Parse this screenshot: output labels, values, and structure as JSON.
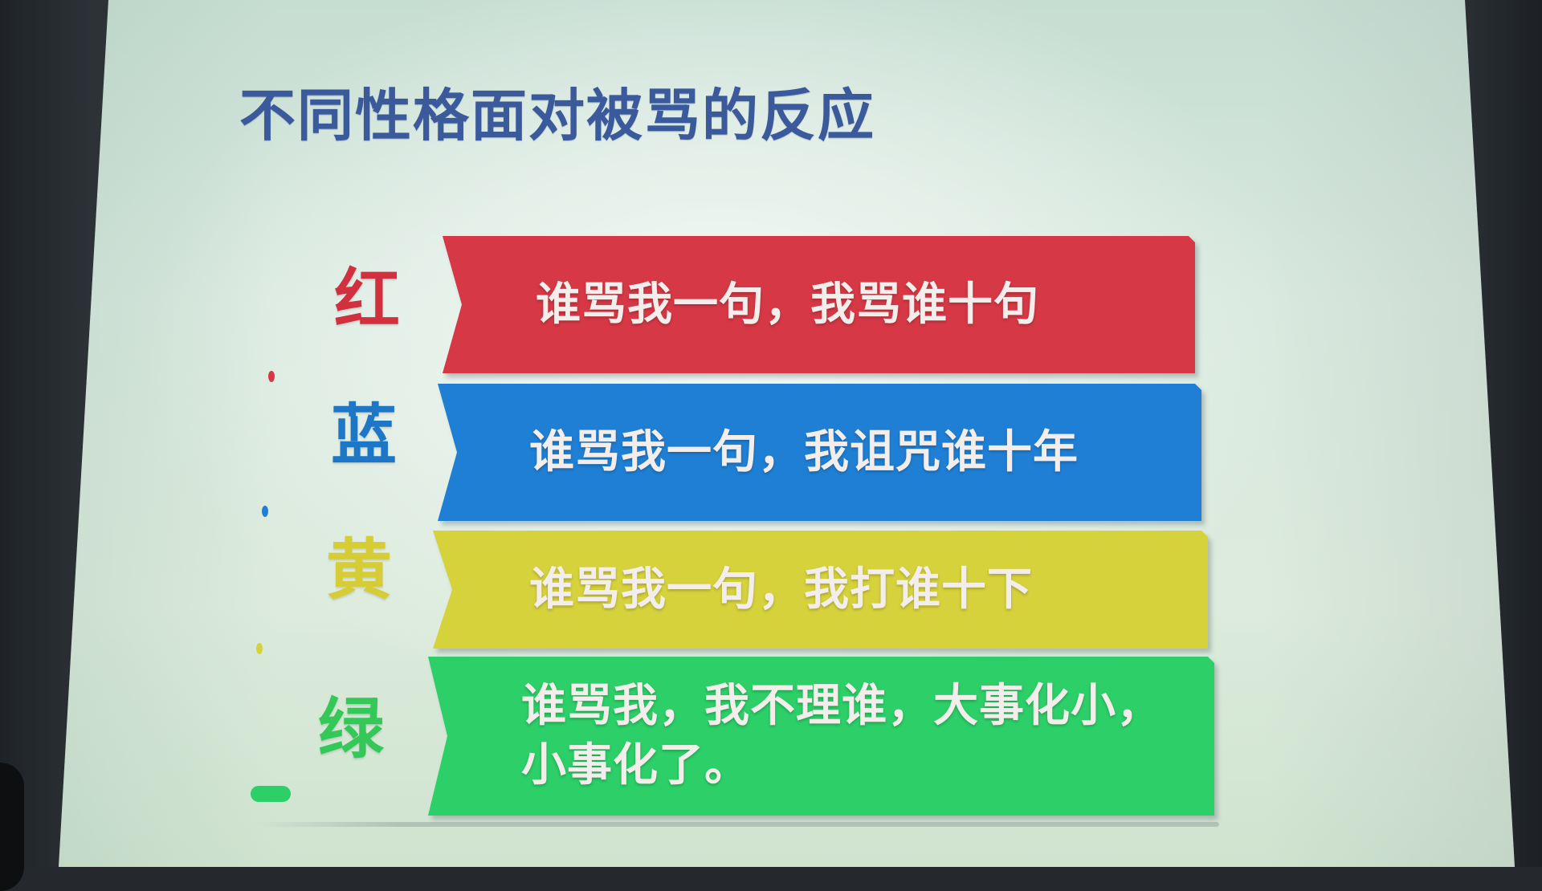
{
  "title": "不同性格面对被骂的反应",
  "colors": {
    "title": "#3b5a9c",
    "red": "#d63845",
    "blue": "#1f7fd4",
    "yellow": "#d6d23c",
    "green": "#2ccf68"
  },
  "rows": [
    {
      "label": "红",
      "label_color": "#d2303e",
      "band_color": "#d63845",
      "lines": [
        "谁骂我一句，我骂谁十句"
      ]
    },
    {
      "label": "蓝",
      "label_color": "#1e76c6",
      "band_color": "#1f7fd4",
      "lines": [
        "谁骂我一句，我诅咒谁十年"
      ]
    },
    {
      "label": "黄",
      "label_color": "#d5cc36",
      "band_color": "#d6d23c",
      "lines": [
        "谁骂我一句，我打谁十下"
      ]
    },
    {
      "label": "绿",
      "label_color": "#34c858",
      "band_color": "#2ccf68",
      "lines": [
        "谁骂我，我不理谁，大事化小，",
        "小事化了。"
      ]
    }
  ]
}
